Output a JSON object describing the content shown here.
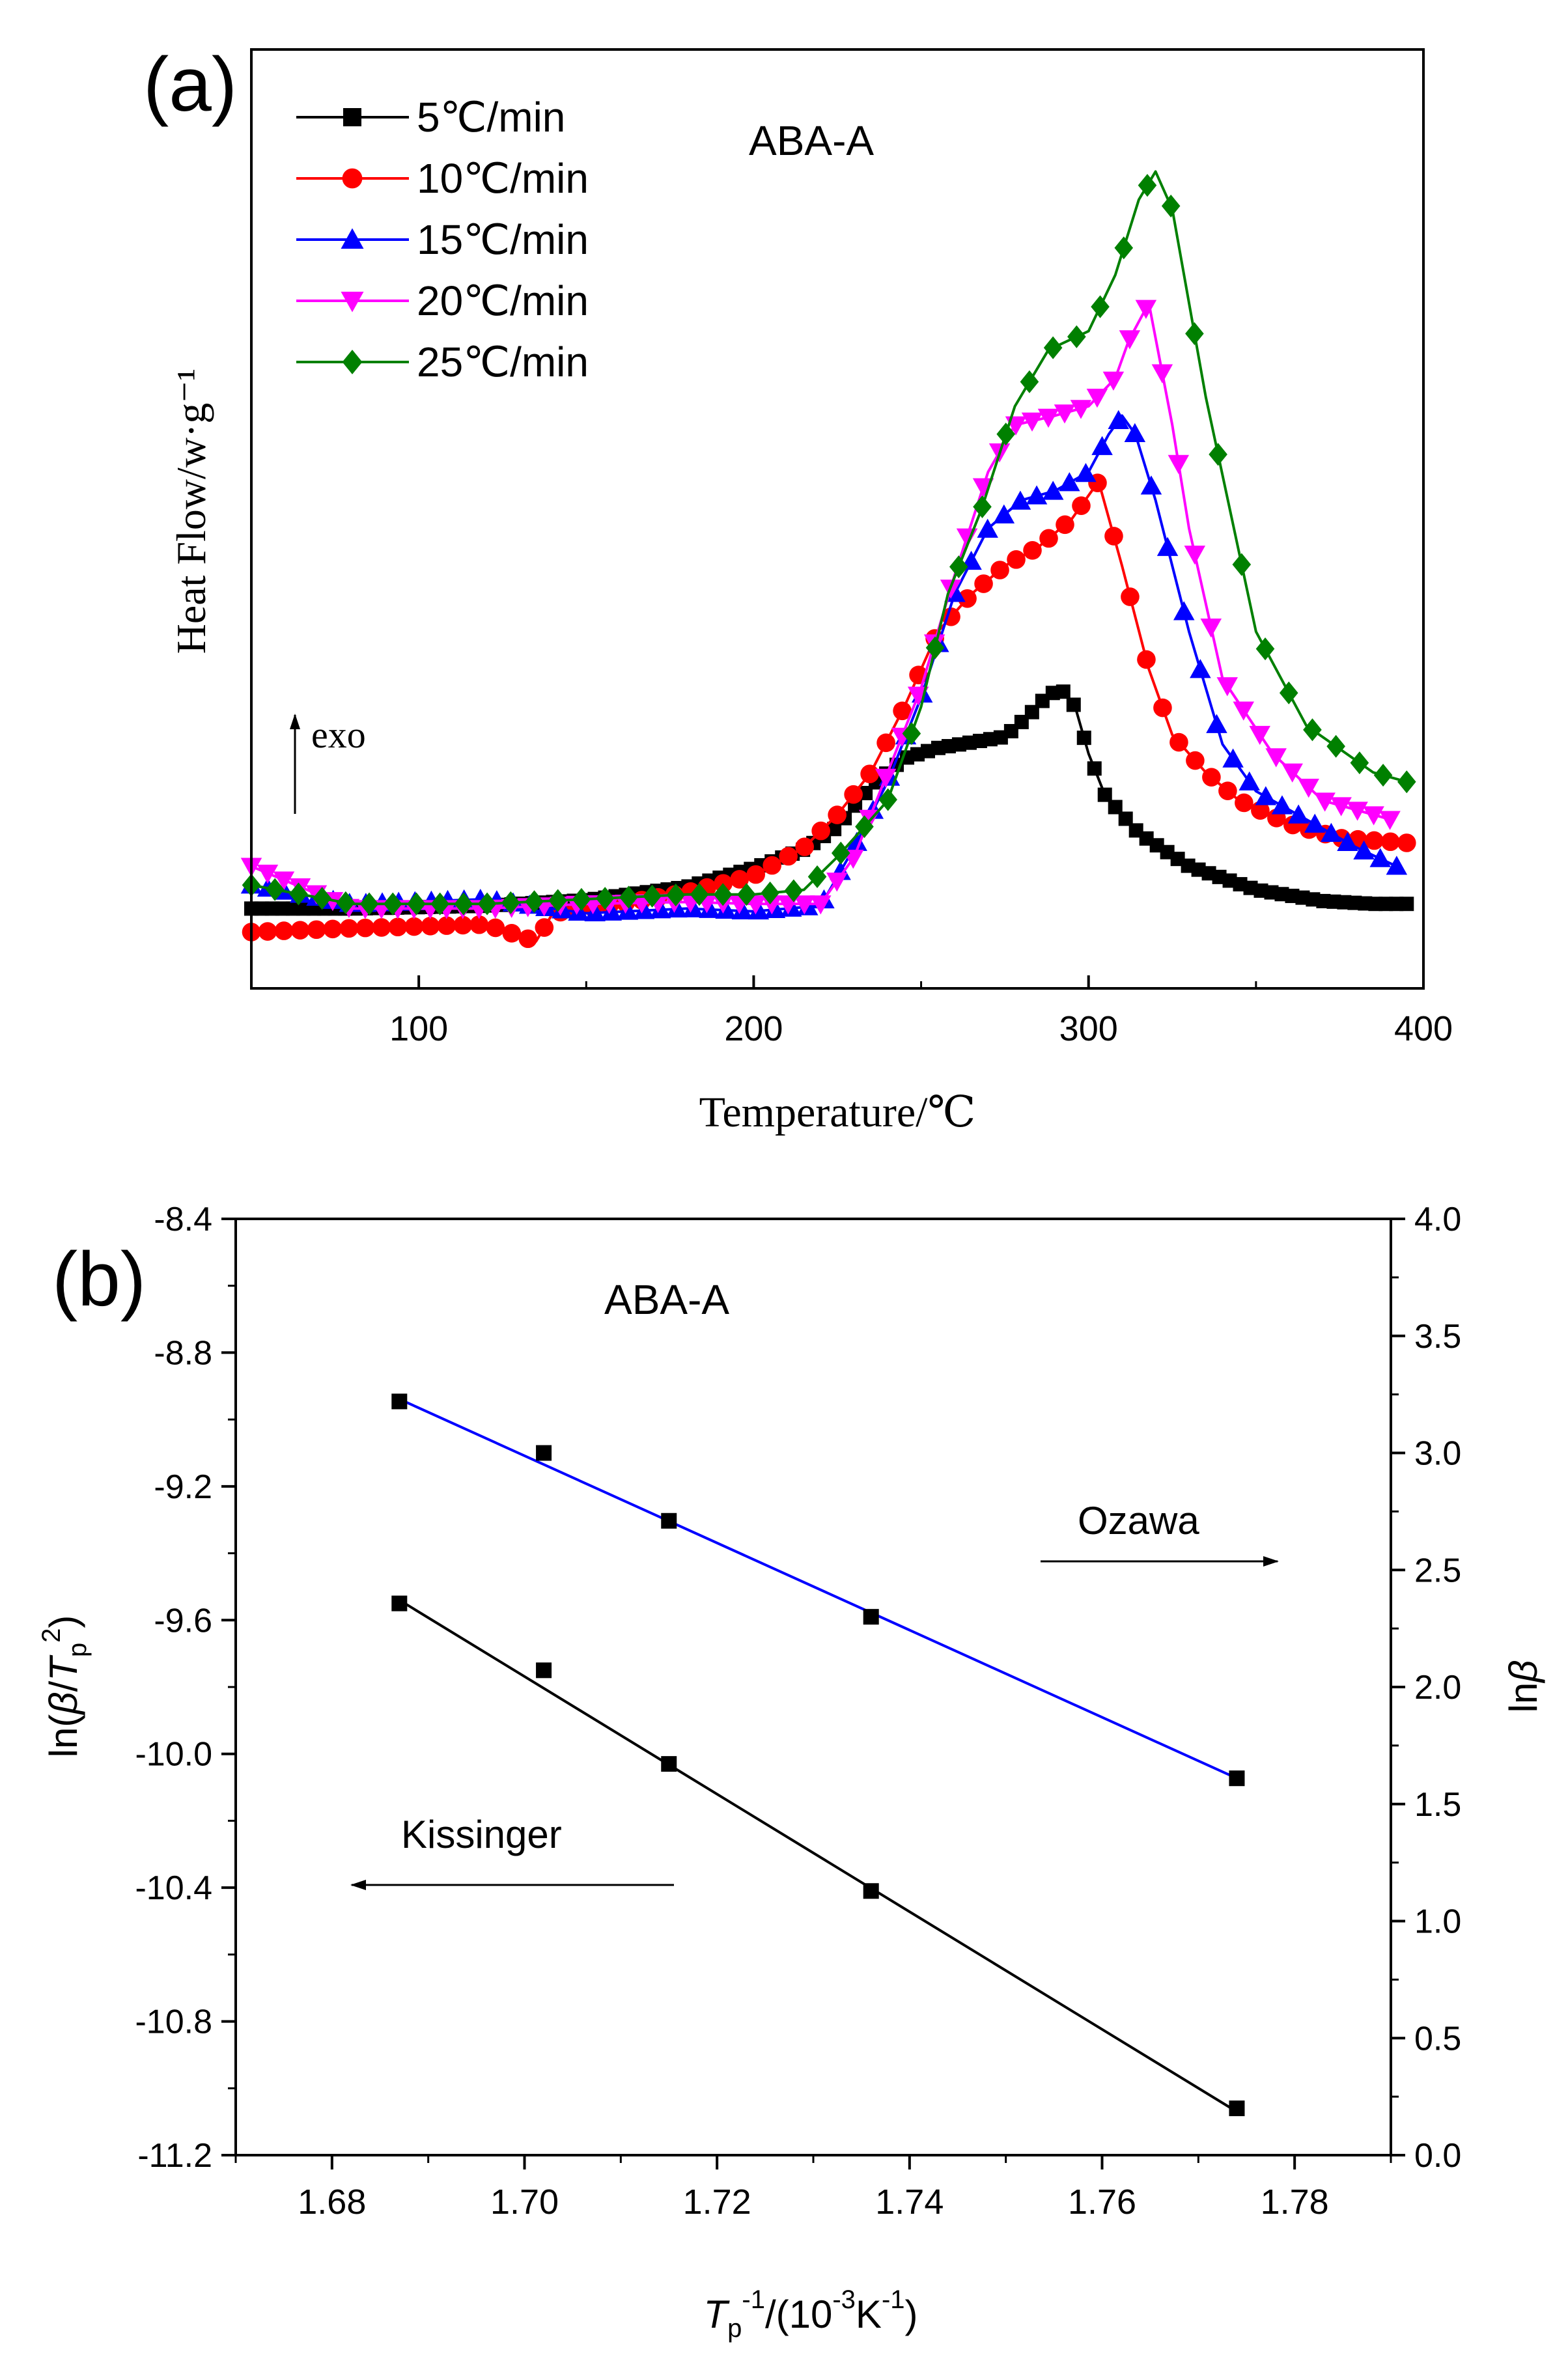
{
  "chart_data": [
    {
      "panel": "(a)",
      "type": "line",
      "title": "ABA-A",
      "xlabel": "Temperature/℃",
      "ylabel": "Heat Flow/w·g⁻¹",
      "xlim": [
        50,
        400
      ],
      "xticks": [
        100,
        200,
        300,
        400
      ],
      "ylim": [
        0,
        1
      ],
      "yticks_shown": false,
      "annotation": "exo",
      "legend_position": "top-left",
      "series": [
        {
          "name": "5℃/min",
          "color": "#000000",
          "marker": "square",
          "x": [
            50,
            80,
            120,
            150,
            180,
            200,
            215,
            225,
            235,
            245,
            255,
            265,
            275,
            282,
            288,
            292,
            296,
            300,
            305,
            315,
            330,
            350,
            370,
            385,
            395
          ],
          "y": [
            0.085,
            0.085,
            0.088,
            0.094,
            0.108,
            0.128,
            0.148,
            0.172,
            0.215,
            0.245,
            0.256,
            0.262,
            0.268,
            0.29,
            0.313,
            0.318,
            0.3,
            0.25,
            0.205,
            0.165,
            0.13,
            0.105,
            0.093,
            0.09,
            0.09
          ]
        },
        {
          "name": "10℃/min",
          "color": "#ff0000",
          "marker": "circle",
          "x": [
            50,
            80,
            120,
            135,
            140,
            160,
            180,
            200,
            215,
            225,
            235,
            245,
            255,
            265,
            275,
            285,
            295,
            303,
            310,
            318,
            325,
            335,
            345,
            360,
            375,
            395
          ],
          "y": [
            0.06,
            0.064,
            0.068,
            0.05,
            0.08,
            0.09,
            0.102,
            0.12,
            0.15,
            0.185,
            0.23,
            0.3,
            0.38,
            0.42,
            0.45,
            0.47,
            0.5,
            0.54,
            0.45,
            0.34,
            0.27,
            0.23,
            0.2,
            0.175,
            0.16,
            0.155
          ]
        },
        {
          "name": "15℃/min",
          "color": "#0000ff",
          "marker": "triangle-up",
          "x": [
            50,
            80,
            120,
            150,
            180,
            200,
            220,
            230,
            240,
            250,
            260,
            270,
            280,
            290,
            300,
            306,
            310,
            314,
            320,
            330,
            340,
            350,
            365,
            380,
            392
          ],
          "y": [
            0.11,
            0.09,
            0.095,
            0.08,
            0.085,
            0.082,
            0.088,
            0.15,
            0.22,
            0.31,
            0.42,
            0.49,
            0.52,
            0.53,
            0.55,
            0.59,
            0.61,
            0.59,
            0.52,
            0.38,
            0.26,
            0.21,
            0.18,
            0.15,
            0.13
          ]
        },
        {
          "name": "20℃/min",
          "color": "#ff00ff",
          "marker": "triangle-down",
          "x": [
            50,
            80,
            120,
            150,
            180,
            200,
            220,
            230,
            240,
            250,
            260,
            270,
            278,
            290,
            300,
            308,
            312,
            318,
            325,
            330,
            340,
            355,
            370,
            390
          ],
          "y": [
            0.13,
            0.085,
            0.085,
            0.09,
            0.092,
            0.09,
            0.09,
            0.14,
            0.23,
            0.32,
            0.44,
            0.55,
            0.6,
            0.61,
            0.62,
            0.65,
            0.69,
            0.73,
            0.6,
            0.49,
            0.33,
            0.25,
            0.2,
            0.18
          ]
        },
        {
          "name": "25℃/min",
          "color": "#008000",
          "marker": "diamond",
          "x": [
            50,
            80,
            120,
            150,
            180,
            200,
            215,
            225,
            240,
            250,
            258,
            268,
            278,
            288,
            300,
            308,
            315,
            320,
            325,
            335,
            350,
            365,
            385,
            395
          ],
          "y": [
            0.11,
            0.09,
            0.09,
            0.095,
            0.1,
            0.1,
            0.105,
            0.14,
            0.2,
            0.3,
            0.42,
            0.51,
            0.62,
            0.68,
            0.7,
            0.76,
            0.84,
            0.87,
            0.83,
            0.63,
            0.38,
            0.28,
            0.23,
            0.22
          ]
        }
      ]
    },
    {
      "panel": "(b)",
      "type": "scatter",
      "title": "ABA-A",
      "xlabel": "T_p⁻¹/(10⁻³K⁻¹)",
      "ylabel_left": "ln(β/T_p²)",
      "ylabel_right": "lnβ",
      "xlim": [
        1.67,
        1.79
      ],
      "xticks": [
        "1.68",
        "1.70",
        "1.72",
        "1.74",
        "1.76",
        "1.78"
      ],
      "ylim_left": [
        -11.2,
        -8.4
      ],
      "yticks_left": [
        "-8.4",
        "-8.8",
        "-9.2",
        "-9.6",
        "-10.0",
        "-10.4",
        "-10.8",
        "-11.2"
      ],
      "ylim_right": [
        0.0,
        4.0
      ],
      "yticks_right": [
        "0.0",
        "0.5",
        "1.0",
        "1.5",
        "2.0",
        "2.5",
        "3.0",
        "3.5",
        "4.0"
      ],
      "series": [
        {
          "name": "Kissinger",
          "axis": "left",
          "color": "#000000",
          "line_color": "#000000",
          "marker": "square",
          "x": [
            1.687,
            1.702,
            1.715,
            1.736,
            1.774
          ],
          "y": [
            -9.55,
            -9.75,
            -10.03,
            -10.41,
            -11.06
          ],
          "fit": {
            "x": [
              1.687,
              1.774
            ],
            "y": [
              -9.54,
              -11.07
            ]
          }
        },
        {
          "name": "Ozawa",
          "axis": "right",
          "color": "#000000",
          "line_color": "#0000ff",
          "marker": "square",
          "x": [
            1.687,
            1.702,
            1.715,
            1.736,
            1.774
          ],
          "y": [
            3.22,
            3.0,
            2.71,
            2.3,
            1.61
          ],
          "fit": {
            "x": [
              1.687,
              1.774
            ],
            "y": [
              3.23,
              1.61
            ]
          }
        }
      ],
      "annotations": [
        {
          "text": "Ozawa",
          "arrow": "right"
        },
        {
          "text": "Kissinger",
          "arrow": "left"
        }
      ]
    }
  ]
}
